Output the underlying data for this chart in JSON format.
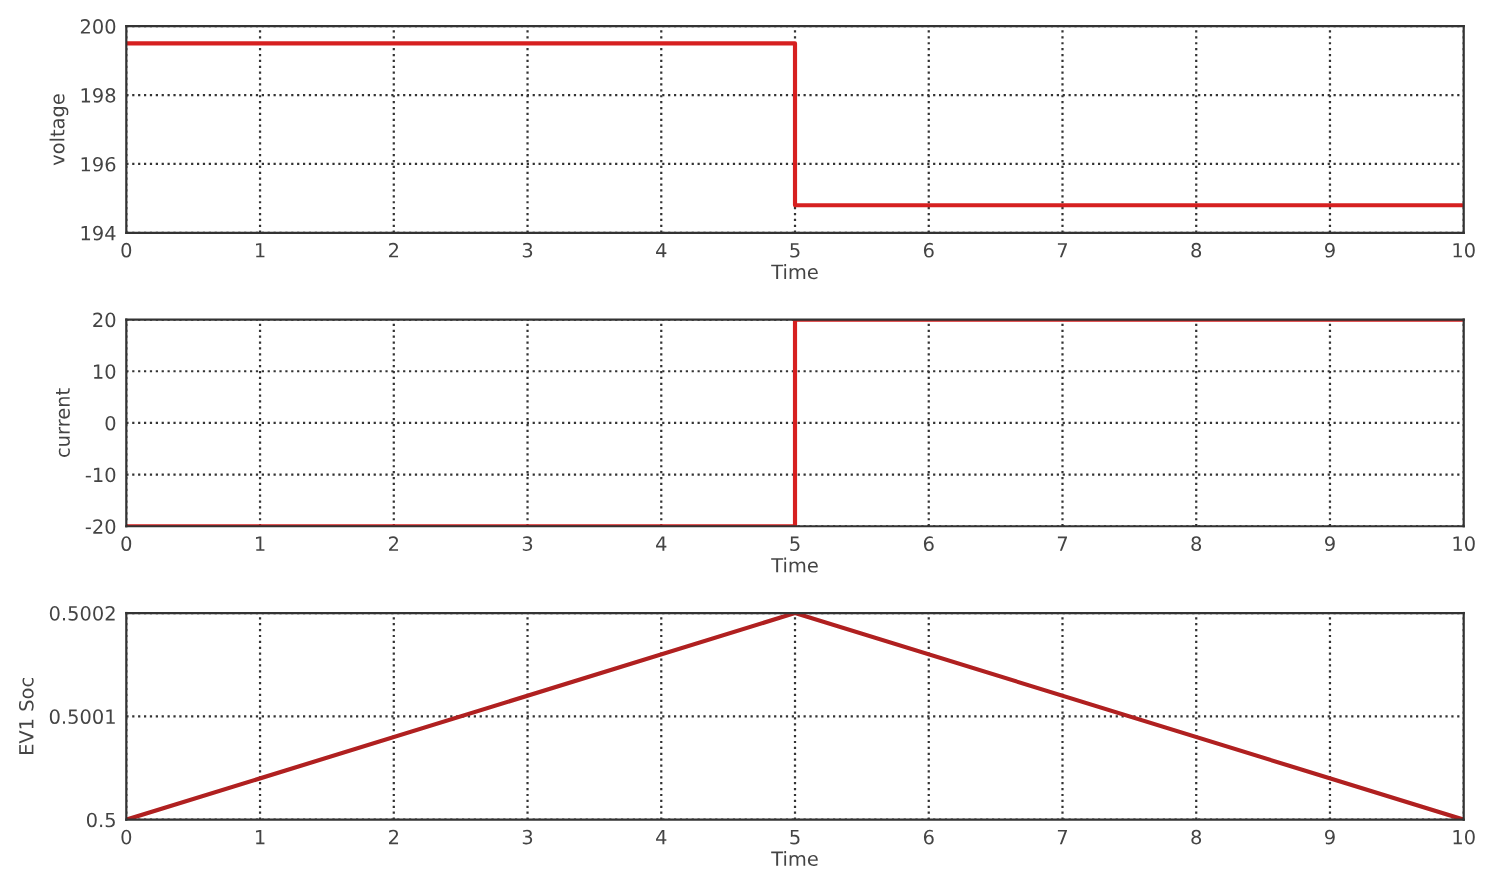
{
  "chart_data": [
    {
      "type": "line",
      "xlabel": "Time",
      "ylabel": "voltage",
      "x": [
        0,
        5,
        5,
        10
      ],
      "series": [
        {
          "color": "#d62020",
          "values": [
            199.5,
            199.5,
            194.8,
            194.8
          ]
        }
      ],
      "xlim": [
        0,
        10
      ],
      "xticks": [
        0,
        1,
        2,
        3,
        4,
        5,
        6,
        7,
        8,
        9,
        10
      ],
      "ylim": [
        194,
        200
      ],
      "yticks": [
        194,
        196,
        198,
        200
      ],
      "grid": true,
      "line_style": "solid"
    },
    {
      "type": "line",
      "xlabel": "Time",
      "ylabel": "current",
      "x": [
        0,
        5,
        5,
        10
      ],
      "series": [
        {
          "color": "#d62020",
          "values": [
            -20,
            -20,
            20,
            20
          ]
        }
      ],
      "xlim": [
        0,
        10
      ],
      "xticks": [
        0,
        1,
        2,
        3,
        4,
        5,
        6,
        7,
        8,
        9,
        10
      ],
      "ylim": [
        -20,
        20
      ],
      "yticks": [
        -20,
        -10,
        0,
        10,
        20
      ],
      "grid": true,
      "line_style": "solid"
    },
    {
      "type": "line",
      "xlabel": "Time",
      "ylabel": "EV1 Soc",
      "x": [
        0,
        5,
        10
      ],
      "series": [
        {
          "color": "#b02020",
          "values": [
            0.5,
            0.5002,
            0.5
          ]
        }
      ],
      "xlim": [
        0,
        10
      ],
      "xticks": [
        0,
        1,
        2,
        3,
        4,
        5,
        6,
        7,
        8,
        9,
        10
      ],
      "ylim": [
        0.5,
        0.5002
      ],
      "yticks": [
        0.5,
        0.5001,
        0.5002
      ],
      "grid": true,
      "line_style": "solid"
    }
  ]
}
